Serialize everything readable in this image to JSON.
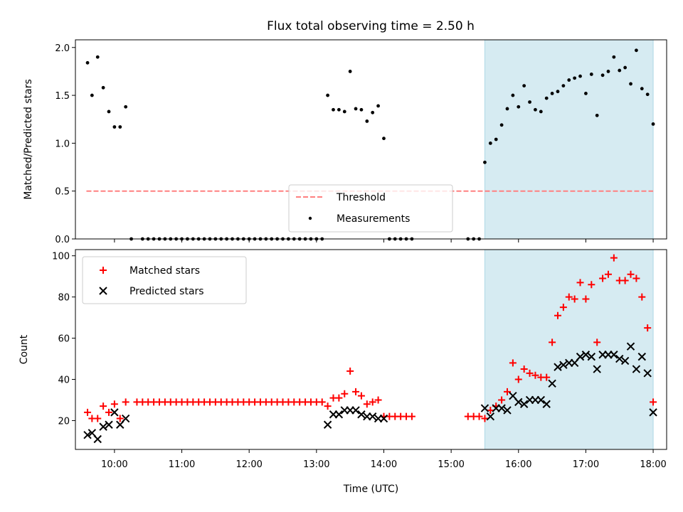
{
  "title": "Flux total observing time = 2.50 h",
  "colors": {
    "highlight": "#add8e6",
    "threshold": "#ff8080",
    "measurement": "#000000",
    "matched": "#ff0000",
    "predicted": "#000000"
  },
  "chart_data": [
    {
      "type": "scatter",
      "ylabel": "Matched/Predicted stars",
      "xlim": [
        9.42,
        18.2
      ],
      "ylim": [
        0,
        2.08
      ],
      "yticks": [
        0.0,
        0.5,
        1.0,
        1.5,
        2.0
      ],
      "ytick_labels": [
        "0.0",
        "0.5",
        "1.0",
        "1.5",
        "2.0"
      ],
      "highlight_span": [
        "15:30",
        "18:00"
      ],
      "legend": {
        "placement": "lower center",
        "threshold_label": "Threshold",
        "measurements_label": "Measurements"
      },
      "threshold": {
        "value": 0.5,
        "x_range": [
          "09:35",
          "18:00"
        ]
      },
      "series": [
        {
          "name": "Measurements",
          "points": [
            [
              "09:36",
              1.84
            ],
            [
              "09:40",
              1.5
            ],
            [
              "09:45",
              1.9
            ],
            [
              "09:50",
              1.58
            ],
            [
              "09:55",
              1.33
            ],
            [
              "10:00",
              1.17
            ],
            [
              "10:05",
              1.17
            ],
            [
              "10:10",
              1.38
            ],
            [
              "10:15",
              0
            ],
            [
              "10:25",
              0
            ],
            [
              "10:30",
              0
            ],
            [
              "10:35",
              0
            ],
            [
              "10:40",
              0
            ],
            [
              "10:45",
              0
            ],
            [
              "10:50",
              0
            ],
            [
              "10:55",
              0
            ],
            [
              "11:00",
              0
            ],
            [
              "11:05",
              0
            ],
            [
              "11:10",
              0
            ],
            [
              "11:15",
              0
            ],
            [
              "11:20",
              0
            ],
            [
              "11:25",
              0
            ],
            [
              "11:30",
              0
            ],
            [
              "11:35",
              0
            ],
            [
              "11:40",
              0
            ],
            [
              "11:45",
              0
            ],
            [
              "11:50",
              0
            ],
            [
              "11:55",
              0
            ],
            [
              "12:00",
              0
            ],
            [
              "12:05",
              0
            ],
            [
              "12:10",
              0
            ],
            [
              "12:15",
              0
            ],
            [
              "12:20",
              0
            ],
            [
              "12:25",
              0
            ],
            [
              "12:30",
              0
            ],
            [
              "12:35",
              0
            ],
            [
              "12:40",
              0
            ],
            [
              "12:45",
              0
            ],
            [
              "12:50",
              0
            ],
            [
              "12:55",
              0
            ],
            [
              "13:00",
              0
            ],
            [
              "13:05",
              0
            ],
            [
              "13:10",
              1.5
            ],
            [
              "13:15",
              1.35
            ],
            [
              "13:20",
              1.35
            ],
            [
              "13:25",
              1.33
            ],
            [
              "13:30",
              1.75
            ],
            [
              "13:35",
              1.36
            ],
            [
              "13:40",
              1.35
            ],
            [
              "13:45",
              1.23
            ],
            [
              "13:50",
              1.32
            ],
            [
              "13:55",
              1.39
            ],
            [
              "14:00",
              1.05
            ],
            [
              "14:05",
              0
            ],
            [
              "14:10",
              0
            ],
            [
              "14:15",
              0
            ],
            [
              "14:20",
              0
            ],
            [
              "14:25",
              0
            ],
            [
              "15:15",
              0
            ],
            [
              "15:20",
              0
            ],
            [
              "15:25",
              0
            ],
            [
              "15:30",
              0.8
            ],
            [
              "15:35",
              1.0
            ],
            [
              "15:40",
              1.04
            ],
            [
              "15:45",
              1.19
            ],
            [
              "15:50",
              1.36
            ],
            [
              "15:55",
              1.5
            ],
            [
              "16:00",
              1.38
            ],
            [
              "16:05",
              1.6
            ],
            [
              "16:10",
              1.43
            ],
            [
              "16:15",
              1.35
            ],
            [
              "16:20",
              1.33
            ],
            [
              "16:25",
              1.47
            ],
            [
              "16:30",
              1.52
            ],
            [
              "16:35",
              1.54
            ],
            [
              "16:40",
              1.6
            ],
            [
              "16:45",
              1.66
            ],
            [
              "16:50",
              1.68
            ],
            [
              "16:55",
              1.7
            ],
            [
              "17:00",
              1.52
            ],
            [
              "17:05",
              1.72
            ],
            [
              "17:10",
              1.29
            ],
            [
              "17:15",
              1.71
            ],
            [
              "17:20",
              1.75
            ],
            [
              "17:25",
              1.9
            ],
            [
              "17:30",
              1.76
            ],
            [
              "17:35",
              1.79
            ],
            [
              "17:40",
              1.62
            ],
            [
              "17:45",
              1.97
            ],
            [
              "17:50",
              1.57
            ],
            [
              "17:55",
              1.51
            ],
            [
              "18:00",
              1.2
            ]
          ]
        }
      ]
    },
    {
      "type": "scatter",
      "xlabel": "Time (UTC)",
      "ylabel": "Count",
      "xlim": [
        9.42,
        18.2
      ],
      "ylim": [
        6,
        103
      ],
      "yticks": [
        20,
        40,
        60,
        80,
        100
      ],
      "ytick_labels": [
        "20",
        "40",
        "60",
        "80",
        "100"
      ],
      "xticks": [
        "10:00",
        "11:00",
        "12:00",
        "13:00",
        "14:00",
        "15:00",
        "16:00",
        "17:00",
        "18:00"
      ],
      "highlight_span": [
        "15:30",
        "18:00"
      ],
      "legend": {
        "placement": "upper left"
      },
      "series": [
        {
          "name": "Matched stars",
          "marker": "plus",
          "points": [
            [
              "09:36",
              24
            ],
            [
              "09:40",
              21
            ],
            [
              "09:45",
              21
            ],
            [
              "09:50",
              27
            ],
            [
              "09:55",
              24
            ],
            [
              "10:00",
              28
            ],
            [
              "10:05",
              21
            ],
            [
              "10:10",
              29
            ],
            [
              "10:20",
              29
            ],
            [
              "10:25",
              29
            ],
            [
              "10:30",
              29
            ],
            [
              "10:35",
              29
            ],
            [
              "10:40",
              29
            ],
            [
              "10:45",
              29
            ],
            [
              "10:50",
              29
            ],
            [
              "10:55",
              29
            ],
            [
              "11:00",
              29
            ],
            [
              "11:05",
              29
            ],
            [
              "11:10",
              29
            ],
            [
              "11:15",
              29
            ],
            [
              "11:20",
              29
            ],
            [
              "11:25",
              29
            ],
            [
              "11:30",
              29
            ],
            [
              "11:35",
              29
            ],
            [
              "11:40",
              29
            ],
            [
              "11:45",
              29
            ],
            [
              "11:50",
              29
            ],
            [
              "11:55",
              29
            ],
            [
              "12:00",
              29
            ],
            [
              "12:05",
              29
            ],
            [
              "12:10",
              29
            ],
            [
              "12:15",
              29
            ],
            [
              "12:20",
              29
            ],
            [
              "12:25",
              29
            ],
            [
              "12:30",
              29
            ],
            [
              "12:35",
              29
            ],
            [
              "12:40",
              29
            ],
            [
              "12:45",
              29
            ],
            [
              "12:50",
              29
            ],
            [
              "12:55",
              29
            ],
            [
              "13:00",
              29
            ],
            [
              "13:05",
              29
            ],
            [
              "13:10",
              27
            ],
            [
              "13:15",
              31
            ],
            [
              "13:20",
              31
            ],
            [
              "13:25",
              33
            ],
            [
              "13:30",
              44
            ],
            [
              "13:35",
              34
            ],
            [
              "13:40",
              32
            ],
            [
              "13:45",
              28
            ],
            [
              "13:50",
              29
            ],
            [
              "13:55",
              30
            ],
            [
              "14:00",
              22
            ],
            [
              "14:05",
              22
            ],
            [
              "14:10",
              22
            ],
            [
              "14:15",
              22
            ],
            [
              "14:20",
              22
            ],
            [
              "14:25",
              22
            ],
            [
              "15:15",
              22
            ],
            [
              "15:20",
              22
            ],
            [
              "15:25",
              22
            ],
            [
              "15:30",
              21
            ],
            [
              "15:35",
              25
            ],
            [
              "15:40",
              27
            ],
            [
              "15:45",
              30
            ],
            [
              "15:50",
              34
            ],
            [
              "15:55",
              48
            ],
            [
              "16:00",
              40
            ],
            [
              "16:05",
              45
            ],
            [
              "16:10",
              43
            ],
            [
              "16:15",
              42
            ],
            [
              "16:20",
              41
            ],
            [
              "16:25",
              41
            ],
            [
              "16:30",
              58
            ],
            [
              "16:35",
              71
            ],
            [
              "16:40",
              75
            ],
            [
              "16:45",
              80
            ],
            [
              "16:50",
              79
            ],
            [
              "16:55",
              87
            ],
            [
              "17:00",
              79
            ],
            [
              "17:05",
              86
            ],
            [
              "17:10",
              58
            ],
            [
              "17:15",
              89
            ],
            [
              "17:20",
              91
            ],
            [
              "17:25",
              99
            ],
            [
              "17:30",
              88
            ],
            [
              "17:35",
              88
            ],
            [
              "17:40",
              91
            ],
            [
              "17:45",
              89
            ],
            [
              "17:50",
              80
            ],
            [
              "17:55",
              65
            ],
            [
              "18:00",
              29
            ]
          ]
        },
        {
          "name": "Predicted stars",
          "marker": "x",
          "points": [
            [
              "09:36",
              13
            ],
            [
              "09:40",
              14
            ],
            [
              "09:45",
              11
            ],
            [
              "09:50",
              17
            ],
            [
              "09:55",
              18
            ],
            [
              "10:00",
              24
            ],
            [
              "10:05",
              18
            ],
            [
              "10:10",
              21
            ],
            [
              "13:10",
              18
            ],
            [
              "13:15",
              23
            ],
            [
              "13:20",
              23
            ],
            [
              "13:25",
              25
            ],
            [
              "13:30",
              25
            ],
            [
              "13:35",
              25
            ],
            [
              "13:40",
              23
            ],
            [
              "13:45",
              22
            ],
            [
              "13:50",
              22
            ],
            [
              "13:55",
              21
            ],
            [
              "14:00",
              21
            ],
            [
              "15:30",
              26
            ],
            [
              "15:35",
              22
            ],
            [
              "15:40",
              26
            ],
            [
              "15:45",
              26
            ],
            [
              "15:50",
              25
            ],
            [
              "15:55",
              32
            ],
            [
              "16:00",
              29
            ],
            [
              "16:05",
              28
            ],
            [
              "16:10",
              30
            ],
            [
              "16:15",
              30
            ],
            [
              "16:20",
              30
            ],
            [
              "16:25",
              28
            ],
            [
              "16:30",
              38
            ],
            [
              "16:35",
              46
            ],
            [
              "16:40",
              47
            ],
            [
              "16:45",
              48
            ],
            [
              "16:50",
              48
            ],
            [
              "16:55",
              51
            ],
            [
              "17:00",
              52
            ],
            [
              "17:05",
              51
            ],
            [
              "17:10",
              45
            ],
            [
              "17:15",
              52
            ],
            [
              "17:20",
              52
            ],
            [
              "17:25",
              52
            ],
            [
              "17:30",
              50
            ],
            [
              "17:35",
              49
            ],
            [
              "17:40",
              56
            ],
            [
              "17:45",
              45
            ],
            [
              "17:50",
              51
            ],
            [
              "17:55",
              43
            ],
            [
              "18:00",
              24
            ]
          ]
        }
      ]
    }
  ]
}
